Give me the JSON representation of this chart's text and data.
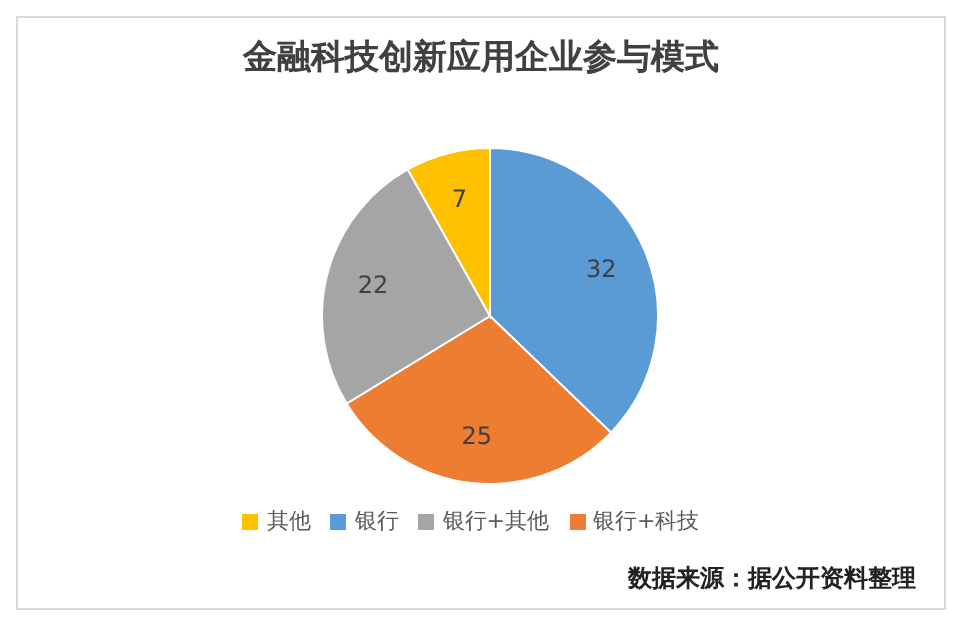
{
  "chart_data": {
    "type": "pie",
    "title": "金融科技创新应用企业参与模式",
    "categories": [
      "银行",
      "银行+科技",
      "银行+其他",
      "其他"
    ],
    "values": [
      32,
      25,
      22,
      7
    ],
    "colors": [
      "#5b9bd5",
      "#ed7d31",
      "#a5a5a5",
      "#ffc000"
    ],
    "data_labels": true,
    "legend": "bottom",
    "annotations": [
      "数据来源：据公开资料整理"
    ]
  }
}
